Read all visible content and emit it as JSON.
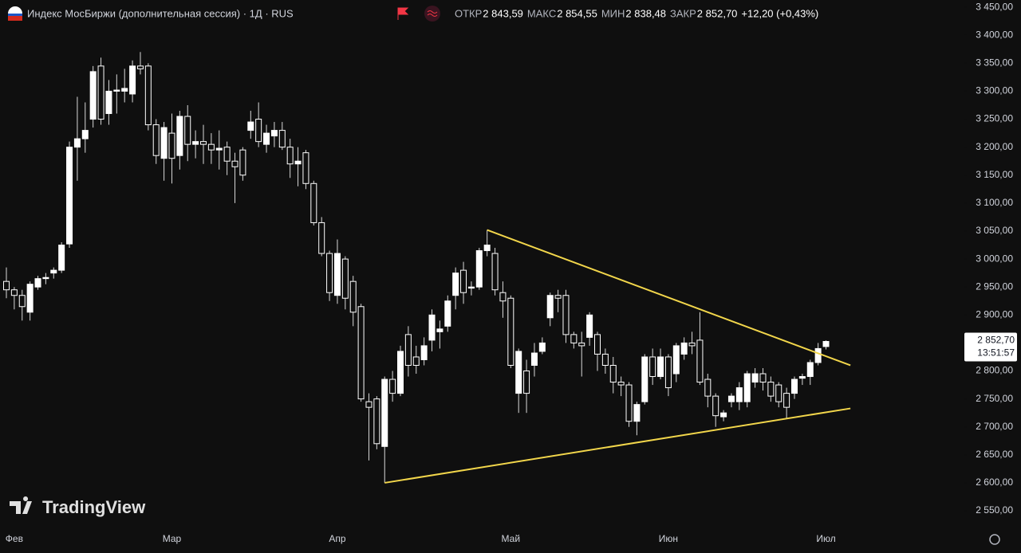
{
  "chart_data": {
    "type": "candlestick",
    "title": "Индекс МосБиржи (дополнительная сессия) · 1Д · RUS",
    "ohlc_labels": [
      "ОТКР",
      "МАКС",
      "МИН",
      "ЗАКР"
    ],
    "ohlc_values": [
      "2 843,59",
      "2 854,55",
      "2 838,48",
      "2 852,70"
    ],
    "change": "+12,20 (+0,43%)",
    "last_price_label": "2 852,70",
    "countdown": "13:51:57",
    "watermark": "TradingView",
    "up_color": "#ffffff",
    "down_color": "#0f0f0f",
    "wick_color": "#d9d9d9",
    "categories": [
      null,
      "Фев",
      null,
      null,
      null,
      null,
      null,
      null,
      null,
      null,
      null,
      null,
      null,
      null,
      null,
      null,
      null,
      null,
      null,
      null,
      null,
      "Мар",
      null,
      null,
      null,
      null,
      null,
      null,
      null,
      null,
      null,
      null,
      null,
      null,
      null,
      null,
      null,
      null,
      null,
      null,
      null,
      null,
      "Апр",
      null,
      null,
      null,
      null,
      null,
      null,
      null,
      null,
      null,
      null,
      null,
      null,
      null,
      null,
      null,
      null,
      null,
      null,
      null,
      null,
      null,
      "Май",
      null,
      null,
      null,
      null,
      null,
      null,
      null,
      null,
      null,
      null,
      null,
      null,
      null,
      null,
      null,
      null,
      null,
      null,
      null,
      "Июн",
      null,
      null,
      null,
      null,
      null,
      null,
      null,
      null,
      null,
      null,
      null,
      null,
      null,
      null,
      null,
      null,
      null,
      null,
      null,
      "Июл"
    ],
    "open": [
      2960,
      2945,
      2935,
      2905,
      2950,
      2965,
      2975,
      2980,
      3027,
      3200,
      3215,
      3250,
      3345,
      3260,
      3300,
      3300,
      3295,
      3345,
      3345,
      3240,
      3180,
      3225,
      3185,
      3255,
      3205,
      3210,
      3205,
      3195,
      3200,
      3175,
      3195,
      3230,
      3250,
      3205,
      3220,
      3230,
      3200,
      3170,
      3190,
      3135,
      3065,
      3010,
      2935,
      3000,
      2960,
      2915,
      2745,
      2750,
      2665,
      2785,
      2760,
      2865,
      2825,
      2820,
      2855,
      2870,
      2880,
      2935,
      2980,
      2948,
      2950,
      3015,
      3010,
      2940,
      2930,
      2760,
      2800,
      2810,
      2835,
      2895,
      2935,
      2935,
      2865,
      2850,
      2860,
      2865,
      2830,
      2810,
      2780,
      2775,
      2710,
      2745,
      2825,
      2790,
      2825,
      2795,
      2830,
      2850,
      2855,
      2785,
      2755,
      2718,
      2745,
      2745,
      2745,
      2780,
      2795,
      2780,
      2775,
      2760,
      2760,
      2787,
      2790,
      2815,
      2843.59
    ],
    "high": [
      2985,
      2950,
      2945,
      2960,
      2970,
      2975,
      2985,
      3030,
      3210,
      3290,
      3280,
      3345,
      3360,
      3320,
      3330,
      3340,
      3355,
      3370,
      3350,
      3250,
      3245,
      3260,
      3265,
      3275,
      3230,
      3240,
      3225,
      3230,
      3210,
      3190,
      3200,
      3265,
      3280,
      3240,
      3245,
      3245,
      3215,
      3200,
      3195,
      3140,
      3075,
      3015,
      3035,
      3005,
      2970,
      2920,
      2760,
      2755,
      2790,
      2800,
      2845,
      2880,
      2845,
      2860,
      2910,
      2890,
      2935,
      2985,
      2995,
      2960,
      3020,
      3052,
      3020,
      2960,
      2935,
      2840,
      2820,
      2850,
      2860,
      2940,
      2945,
      2945,
      2870,
      2870,
      2905,
      2870,
      2840,
      2825,
      2790,
      2780,
      2745,
      2830,
      2840,
      2840,
      2830,
      2850,
      2860,
      2870,
      2905,
      2795,
      2760,
      2730,
      2760,
      2780,
      2800,
      2805,
      2805,
      2790,
      2780,
      2770,
      2790,
      2795,
      2820,
      2850,
      2854.55
    ],
    "low": [
      2930,
      2910,
      2890,
      2890,
      2945,
      2955,
      2965,
      2975,
      3020,
      3140,
      3190,
      3235,
      3240,
      3240,
      3260,
      3280,
      3280,
      3330,
      3230,
      3170,
      3140,
      3135,
      3160,
      3175,
      3180,
      3170,
      3170,
      3160,
      3150,
      3100,
      3140,
      3215,
      3200,
      3190,
      3200,
      3195,
      3145,
      3130,
      3125,
      3060,
      3005,
      2925,
      2920,
      2910,
      2880,
      2745,
      2640,
      2660,
      2600,
      2745,
      2755,
      2790,
      2795,
      2810,
      2835,
      2840,
      2870,
      2910,
      2920,
      2935,
      2945,
      3005,
      2935,
      2895,
      2805,
      2725,
      2725,
      2790,
      2830,
      2880,
      2905,
      2850,
      2840,
      2790,
      2845,
      2800,
      2795,
      2760,
      2755,
      2700,
      2685,
      2740,
      2775,
      2785,
      2755,
      2780,
      2820,
      2830,
      2775,
      2735,
      2700,
      2710,
      2735,
      2730,
      2735,
      2770,
      2765,
      2745,
      2735,
      2715,
      2750,
      2775,
      2775,
      2810,
      2838.48
    ],
    "close": [
      2945,
      2935,
      2915,
      2955,
      2965,
      2967,
      2980,
      3025,
      3200,
      3215,
      3230,
      3335,
      3250,
      3300,
      3302,
      3305,
      3345,
      3340,
      3240,
      3185,
      3235,
      3180,
      3255,
      3205,
      3210,
      3205,
      3195,
      3198,
      3175,
      3165,
      3150,
      3245,
      3210,
      3225,
      3230,
      3200,
      3170,
      3175,
      3135,
      3065,
      3010,
      2940,
      3010,
      2930,
      2905,
      2750,
      2735,
      2670,
      2785,
      2760,
      2835,
      2810,
      2810,
      2845,
      2900,
      2875,
      2925,
      2975,
      2940,
      2950,
      3015,
      3025,
      2945,
      2925,
      2810,
      2835,
      2760,
      2832,
      2850,
      2935,
      2930,
      2865,
      2850,
      2845,
      2900,
      2830,
      2810,
      2780,
      2775,
      2710,
      2740,
      2825,
      2790,
      2825,
      2770,
      2845,
      2850,
      2845,
      2780,
      2755,
      2720,
      2725,
      2755,
      2770,
      2795,
      2795,
      2780,
      2755,
      2745,
      2735,
      2785,
      2790,
      2815,
      2840,
      2852.7
    ],
    "trendlines": [
      {
        "color": "#f2d64b",
        "x": [
          61,
          107.1
        ],
        "y": [
          3052,
          2810
        ]
      },
      {
        "color": "#f2d64b",
        "x": [
          48,
          107.1
        ],
        "y": [
          2600,
          2733
        ]
      }
    ],
    "ylim": [
      2523,
      3463
    ],
    "yticks": [
      {
        "value": 3450,
        "label": "3 450,00"
      },
      {
        "value": 3400,
        "label": "3 400,00"
      },
      {
        "value": 3350,
        "label": "3 350,00"
      },
      {
        "value": 3300,
        "label": "3 300,00"
      },
      {
        "value": 3250,
        "label": "3 250,00"
      },
      {
        "value": 3200,
        "label": "3 200,00"
      },
      {
        "value": 3150,
        "label": "3 150,00"
      },
      {
        "value": 3100,
        "label": "3 100,00"
      },
      {
        "value": 3050,
        "label": "3 050,00"
      },
      {
        "value": 3000,
        "label": "3 000,00"
      },
      {
        "value": 2950,
        "label": "2 950,00"
      },
      {
        "value": 2900,
        "label": "2 900,00"
      },
      {
        "value": 2850,
        "label": "2 850,00"
      },
      {
        "value": 2800,
        "label": "2 800,00"
      },
      {
        "value": 2750,
        "label": "2 750,00"
      },
      {
        "value": 2700,
        "label": "2 700,00"
      },
      {
        "value": 2650,
        "label": "2 650,00"
      },
      {
        "value": 2600,
        "label": "2 600,00"
      },
      {
        "value": 2550,
        "label": "2 550,00"
      }
    ]
  }
}
